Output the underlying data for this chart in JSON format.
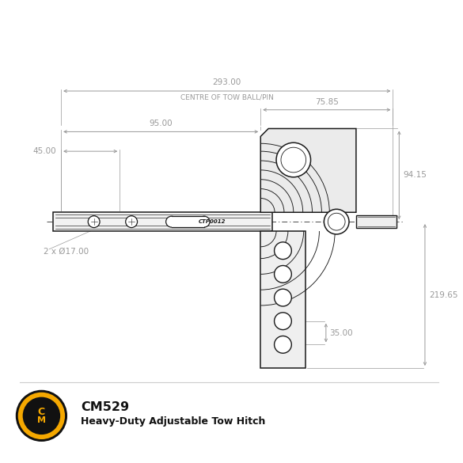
{
  "bg_color": "#ffffff",
  "line_color": "#1a1a1a",
  "dim_color": "#999999",
  "dim_text_color": "#999999",
  "title_text": "CM529",
  "subtitle_text": "Heavy-Duty Adjustable Tow Hitch",
  "logo_gold": "#f5a800",
  "logo_black": "#111111",
  "part_code": "CTP0012",
  "d293": "293.00",
  "centre_label": "CENTRE OF TOW BALL/PIN",
  "d7585": "75.85",
  "d9500": "95.00",
  "d4500": "45.00",
  "d1700": "2 x Ø17.00",
  "d9415": "94.15",
  "d21965": "219.65",
  "d3500": "35.00"
}
